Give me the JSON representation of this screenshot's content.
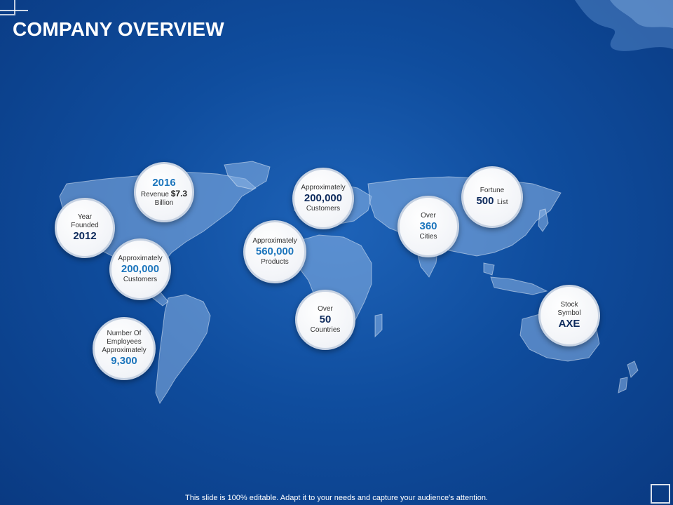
{
  "slide": {
    "title": "COMPANY OVERVIEW",
    "footer": "This slide is 100% editable. Adapt it to your needs and capture your audience's attention."
  },
  "colors": {
    "background": "#0f4d9e",
    "accent": "#1c75bc",
    "dark_accent": "#0d2a5c"
  },
  "bubbles": {
    "founded": {
      "line1": "Year",
      "line2": "Founded",
      "value": "2012"
    },
    "revenue": {
      "year": "2016",
      "prefix": "Revenue",
      "amount": "$7.3",
      "suffix": "Billion"
    },
    "customers_americas": {
      "label": "Approximately",
      "value": "200,000",
      "suffix": "Customers"
    },
    "employees": {
      "line1": "Number Of",
      "line2": "Employees",
      "line3": "Approximately",
      "value": "9,300"
    },
    "customers_europe": {
      "label": "Approximately",
      "value": "200,000",
      "suffix": "Customers"
    },
    "products": {
      "label": "Approximately",
      "value": "560,000",
      "suffix": "Products"
    },
    "countries": {
      "label": "Over",
      "value": "50",
      "suffix": "Countries"
    },
    "cities": {
      "label": "Over",
      "value": "360",
      "suffix": "Cities"
    },
    "fortune": {
      "label": "Fortune",
      "value": "500",
      "suffix": "List"
    },
    "stock": {
      "line1": "Stock",
      "line2": "Symbol",
      "value": "AXE"
    }
  }
}
